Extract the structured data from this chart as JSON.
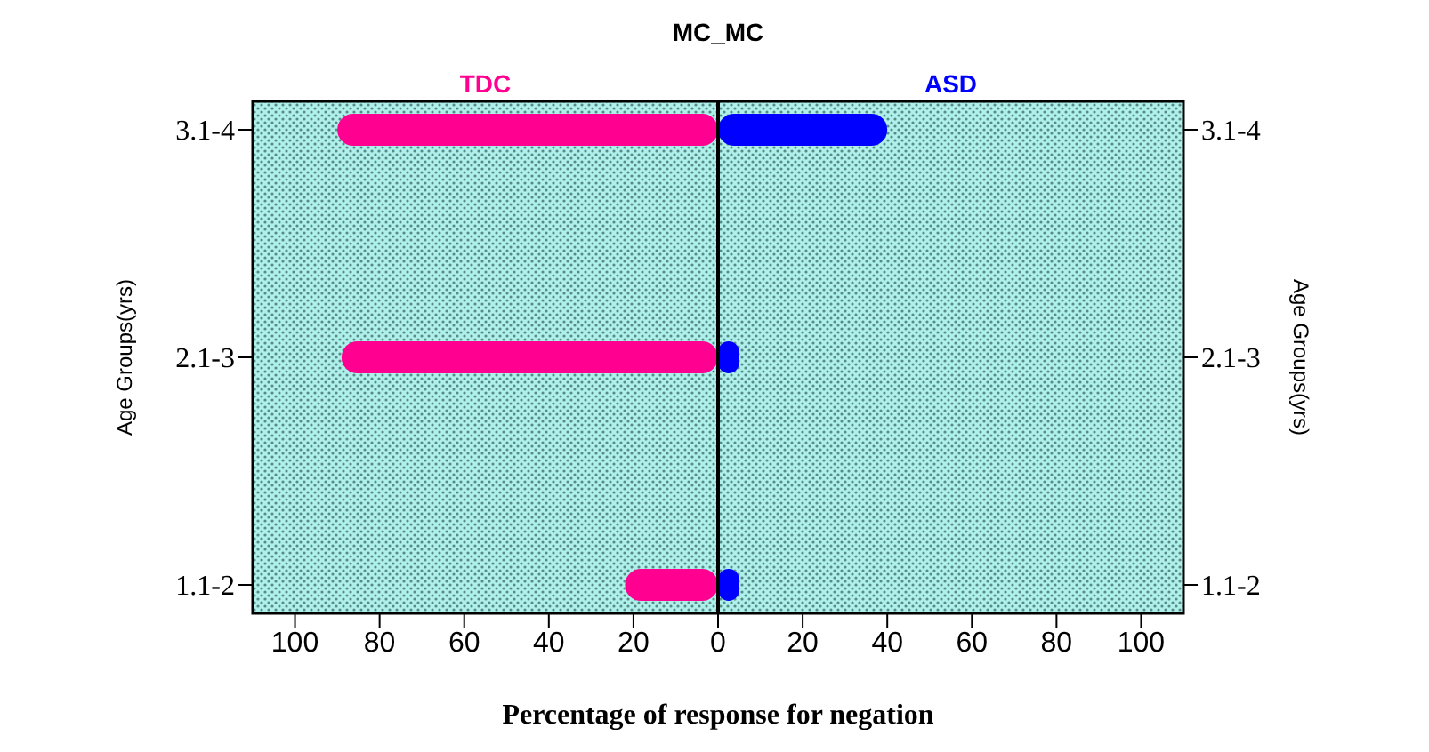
{
  "chart_data": {
    "type": "bar",
    "orientation": "horizontal",
    "stacked": true,
    "title": "MC_MC",
    "xlabel": "Percentage of response for negation",
    "ylabel": "Age Groups(yrs)",
    "y2label": "Age Groups(yrs)",
    "categories": [
      "3.1-4",
      "2.1-3",
      "1.1-2"
    ],
    "series": [
      {
        "name": "TDC",
        "color": "#ff0090",
        "values": [
          -90,
          -89,
          -22
        ]
      },
      {
        "name": "ASD",
        "color": "#0000ff",
        "values": [
          40,
          5,
          5
        ]
      }
    ],
    "xlim": [
      -110,
      110
    ],
    "xticks": [
      {
        "value": -100,
        "label": "100"
      },
      {
        "value": -80,
        "label": "80"
      },
      {
        "value": -60,
        "label": "60"
      },
      {
        "value": -40,
        "label": "40"
      },
      {
        "value": -20,
        "label": "20"
      },
      0,
      20,
      40,
      60,
      80,
      100
    ],
    "ref_lines": [
      {
        "axis": "x",
        "value": 0,
        "color": "#000000"
      }
    ]
  }
}
